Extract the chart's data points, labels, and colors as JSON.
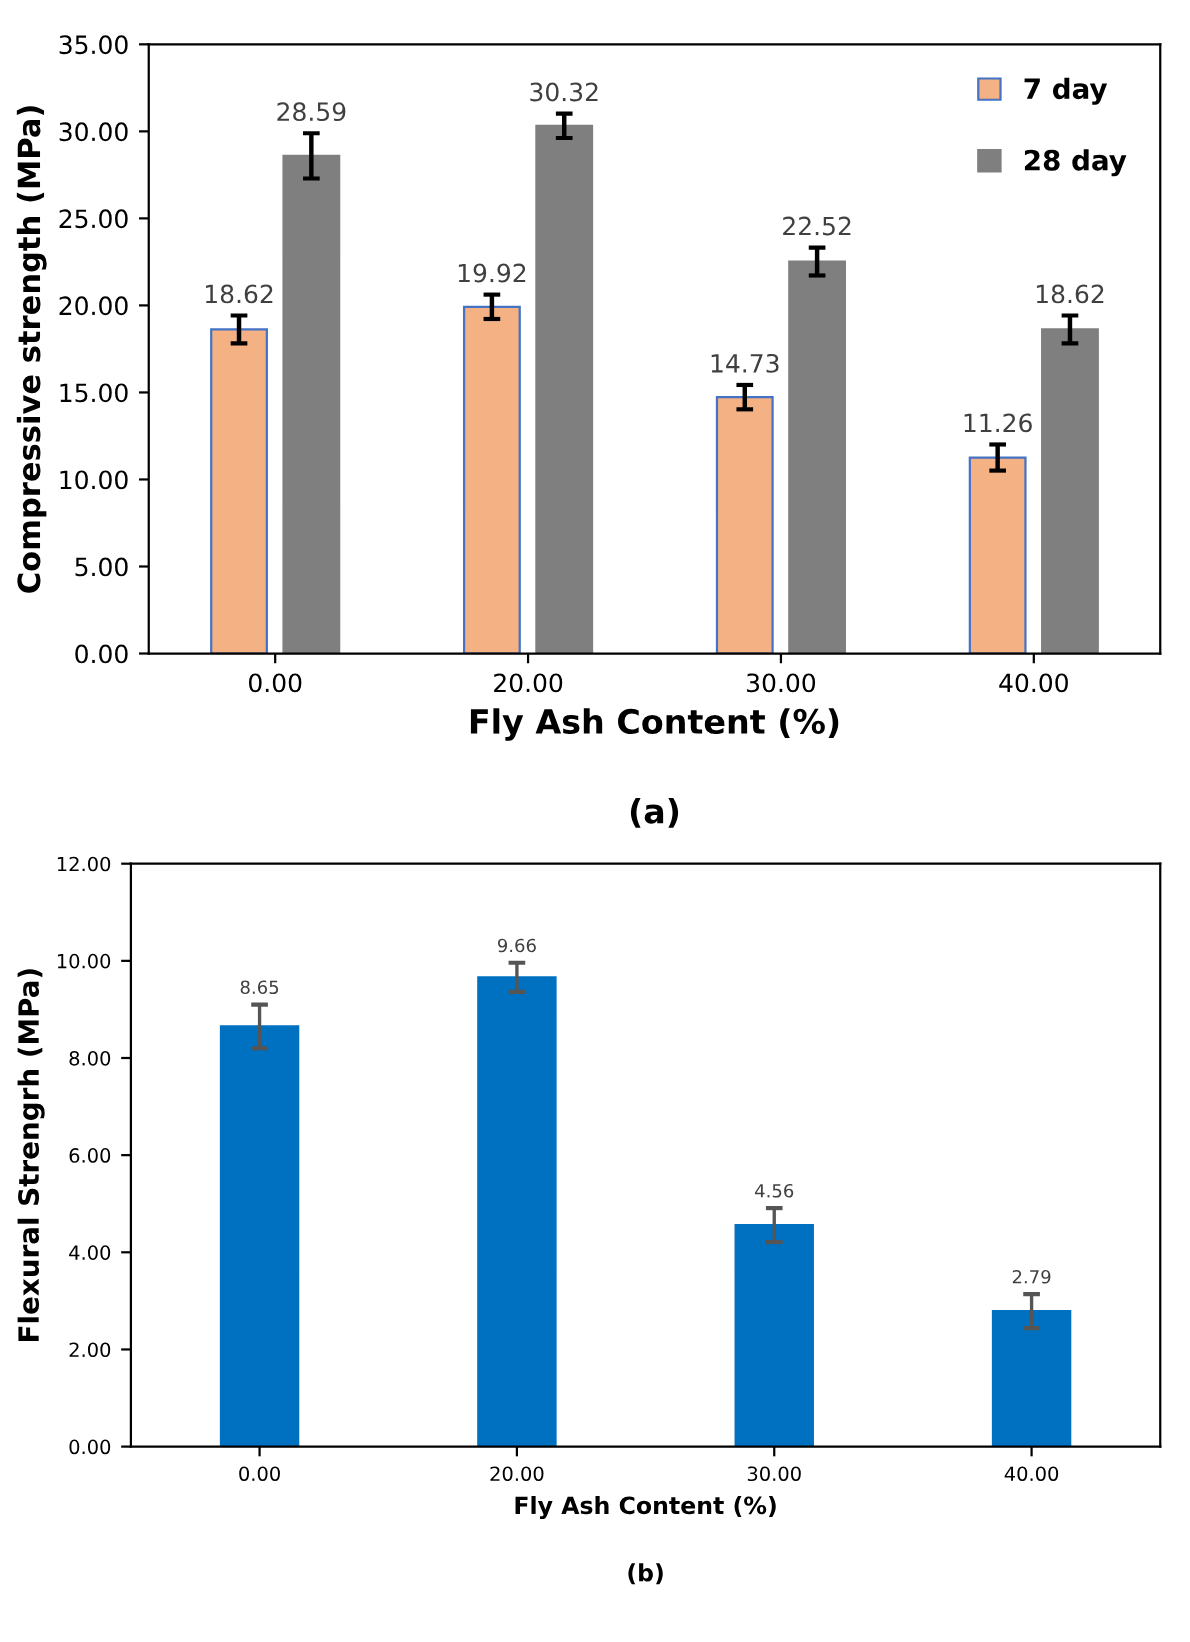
{
  "chart_data": [
    {
      "type": "bar",
      "xlabel": "Fly Ash Content (%)",
      "ylabel": "Compressive strength (MPa)",
      "annotations": [
        "(a)"
      ],
      "categories": [
        "0.00",
        "20.00",
        "30.00",
        "40.00"
      ],
      "series": [
        {
          "name": "7 day",
          "color": "#f4b183",
          "values": [
            18.62,
            19.92,
            14.73,
            11.26
          ],
          "errors": [
            0.8,
            0.7,
            0.7,
            0.75
          ]
        },
        {
          "name": "28 day",
          "color": "#7f7f7f",
          "values": [
            28.59,
            30.32,
            22.52,
            18.62
          ],
          "errors": [
            1.3,
            0.7,
            0.8,
            0.8
          ]
        }
      ],
      "ylim": [
        0,
        35
      ],
      "yticks": [
        {
          "value": 0,
          "label": "0.00"
        },
        {
          "value": 5,
          "label": "5.00"
        },
        {
          "value": 10,
          "label": "10.00"
        },
        {
          "value": 15,
          "label": "15.00"
        },
        {
          "value": 20,
          "label": "20.00"
        },
        {
          "value": 25,
          "label": "25.00"
        },
        {
          "value": 30,
          "label": "30.00"
        },
        {
          "value": 35,
          "label": "35.00"
        }
      ],
      "data_labels": true,
      "legend": "top right",
      "grid": false
    },
    {
      "type": "bar",
      "xlabel": "Fly Ash Content (%)",
      "ylabel": "Flexural Strengrh (MPa)",
      "annotations": [
        "(b)"
      ],
      "categories": [
        "0.00",
        "20.00",
        "30.00",
        "40.00"
      ],
      "series": [
        {
          "color": "#0070c0",
          "values": [
            8.65,
            9.66,
            4.56,
            2.79
          ],
          "errors": [
            0.45,
            0.3,
            0.35,
            0.35
          ]
        }
      ],
      "ylim": [
        0,
        12
      ],
      "yticks": [
        {
          "value": 0,
          "label": "0.00"
        },
        {
          "value": 2,
          "label": "2.00"
        },
        {
          "value": 4,
          "label": "4.00"
        },
        {
          "value": 6,
          "label": "6.00"
        },
        {
          "value": 8,
          "label": "8.00"
        },
        {
          "value": 10,
          "label": "10.00"
        },
        {
          "value": 12,
          "label": "12.00"
        }
      ],
      "data_labels": true,
      "grid": false
    }
  ]
}
